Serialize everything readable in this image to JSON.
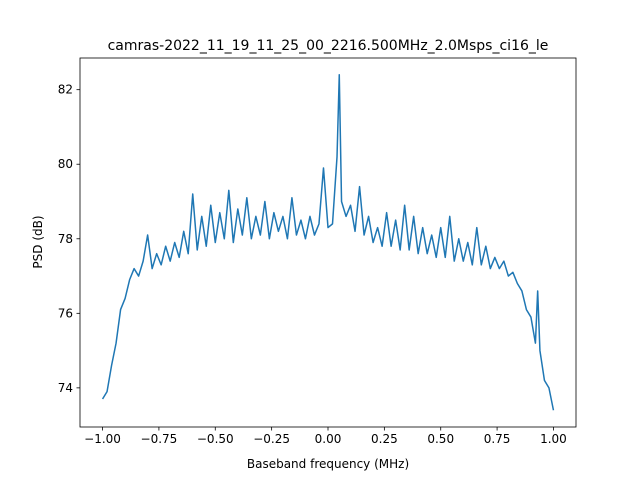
{
  "chart_data": {
    "type": "line",
    "title": "camras-2022_11_19_11_25_00_2216.500MHz_2.0Msps_ci16_le",
    "x_label": "Baseband frequency (MHz)",
    "y_label": "PSD (dB)",
    "x": [
      -1.0,
      -0.98,
      -0.96,
      -0.94,
      -0.92,
      -0.9,
      -0.88,
      -0.86,
      -0.84,
      -0.82,
      -0.8,
      -0.78,
      -0.76,
      -0.74,
      -0.72,
      -0.7,
      -0.68,
      -0.66,
      -0.64,
      -0.62,
      -0.6,
      -0.58,
      -0.56,
      -0.54,
      -0.52,
      -0.5,
      -0.48,
      -0.46,
      -0.44,
      -0.42,
      -0.4,
      -0.38,
      -0.36,
      -0.34,
      -0.32,
      -0.3,
      -0.28,
      -0.26,
      -0.24,
      -0.22,
      -0.2,
      -0.18,
      -0.16,
      -0.14,
      -0.12,
      -0.1,
      -0.08,
      -0.06,
      -0.04,
      -0.02,
      0.0,
      0.02,
      0.04,
      0.05,
      0.06,
      0.08,
      0.1,
      0.12,
      0.14,
      0.16,
      0.18,
      0.2,
      0.22,
      0.24,
      0.26,
      0.28,
      0.3,
      0.32,
      0.34,
      0.36,
      0.38,
      0.4,
      0.42,
      0.44,
      0.46,
      0.48,
      0.5,
      0.52,
      0.54,
      0.56,
      0.58,
      0.6,
      0.62,
      0.64,
      0.66,
      0.68,
      0.7,
      0.72,
      0.74,
      0.76,
      0.78,
      0.8,
      0.82,
      0.84,
      0.86,
      0.88,
      0.9,
      0.92,
      0.93,
      0.94,
      0.96,
      0.98,
      1.0
    ],
    "series": [
      {
        "color": "#1f77b4",
        "values": [
          73.7,
          73.9,
          74.6,
          75.2,
          76.1,
          76.4,
          76.9,
          77.2,
          77.0,
          77.4,
          78.1,
          77.2,
          77.6,
          77.3,
          77.8,
          77.4,
          77.9,
          77.5,
          78.2,
          77.6,
          79.2,
          77.7,
          78.6,
          77.8,
          78.9,
          77.9,
          78.7,
          78.0,
          79.3,
          77.9,
          78.8,
          78.1,
          79.1,
          78.0,
          78.6,
          78.1,
          79.0,
          78.0,
          78.7,
          78.2,
          78.6,
          78.0,
          79.1,
          78.1,
          78.5,
          78.0,
          78.6,
          78.1,
          78.4,
          79.9,
          78.3,
          78.4,
          80.2,
          82.4,
          79.0,
          78.6,
          78.9,
          78.2,
          79.4,
          78.1,
          78.6,
          77.9,
          78.3,
          77.8,
          78.7,
          77.8,
          78.5,
          77.7,
          78.9,
          77.7,
          78.6,
          77.6,
          78.3,
          77.6,
          78.1,
          77.5,
          78.3,
          77.5,
          78.6,
          77.4,
          78.0,
          77.4,
          77.9,
          77.3,
          78.3,
          77.3,
          77.8,
          77.2,
          77.5,
          77.2,
          77.4,
          77.0,
          77.1,
          76.8,
          76.6,
          76.1,
          75.9,
          75.2,
          76.6,
          75.0,
          74.2,
          74.0,
          73.4
        ]
      }
    ],
    "xlim": [
      -1.1,
      1.1
    ],
    "ylim": [
      72.95,
      82.85
    ],
    "xticks": [
      {
        "value": -1.0,
        "label": "−1.00"
      },
      {
        "value": -0.75,
        "label": "−0.75"
      },
      {
        "value": -0.5,
        "label": "−0.50"
      },
      {
        "value": -0.25,
        "label": "−0.25"
      },
      {
        "value": 0.0,
        "label": "0.00"
      },
      {
        "value": 0.25,
        "label": "0.25"
      },
      {
        "value": 0.5,
        "label": "0.50"
      },
      {
        "value": 0.75,
        "label": "0.75"
      },
      {
        "value": 1.0,
        "label": "1.00"
      }
    ],
    "yticks": [
      74,
      76,
      78,
      80,
      82
    ]
  }
}
